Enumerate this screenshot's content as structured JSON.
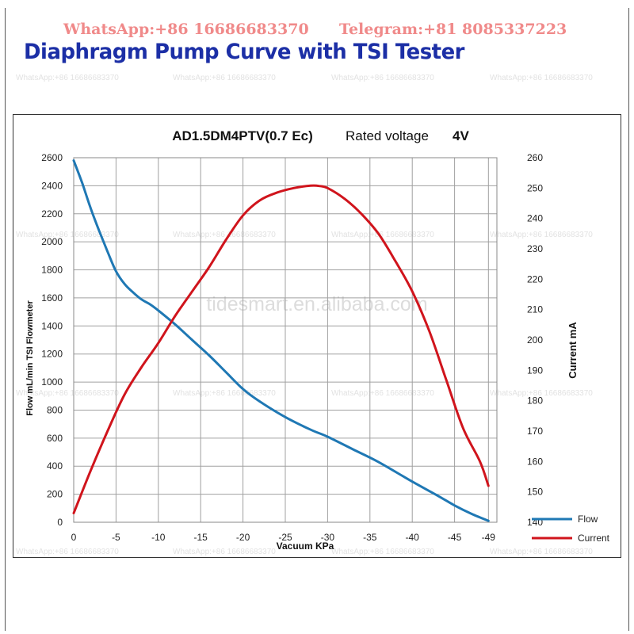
{
  "banner": {
    "whatsapp": "WhatsApp:+86 16686683370",
    "telegram": "Telegram:+81 8085337223"
  },
  "heading": "Diaphragm Pump Curve with TSI Tester",
  "watermarks": {
    "contact": "WhatsApp:+86 16686683370",
    "site": "tidesmart.en.alibaba.com"
  },
  "colors": {
    "heading": "#1c2fa6",
    "banner": "#f08a8a",
    "flow": "#1f78b4",
    "current": "#d0141c",
    "grid": "#a0a0a0"
  },
  "chart_data": {
    "type": "line",
    "title": "AD1.5DM4PTV(0.7 Ec)",
    "subtitle_label": "Rated voltage",
    "subtitle_value": "4V",
    "xlabel": "Vacuum KPa",
    "ylabel_left": "Flow mL/min TSI Flowmeter",
    "ylabel_right": "Current mA",
    "xlim": [
      0,
      -50
    ],
    "x_ticks": [
      0,
      -5,
      -10,
      -15,
      -20,
      -25,
      -30,
      -35,
      -40,
      -45,
      -49
    ],
    "x_tick_labels": [
      "0",
      "-5",
      "-10",
      "-15",
      "-20",
      "-25",
      "-30",
      "-35",
      "-40",
      "-45",
      "-49"
    ],
    "ylim_left": [
      0,
      2600
    ],
    "y_ticks_left": [
      0,
      200,
      400,
      600,
      800,
      1000,
      1200,
      1400,
      1600,
      1800,
      2000,
      2200,
      2400,
      2600
    ],
    "ylim_right": [
      140,
      260
    ],
    "y_ticks_right": [
      140,
      150,
      160,
      170,
      180,
      190,
      200,
      210,
      220,
      230,
      240,
      250,
      260
    ],
    "grid": true,
    "legend_position": "bottom-right",
    "series": [
      {
        "name": "Flow",
        "axis": "left",
        "x": [
          0,
          -1,
          -2,
          -3,
          -4,
          -5,
          -6,
          -7,
          -8,
          -9,
          -10,
          -12,
          -14,
          -16,
          -18,
          -20,
          -22,
          -25,
          -28,
          -30,
          -33,
          -36,
          -40,
          -43,
          -45,
          -47,
          -49
        ],
        "values": [
          2580,
          2420,
          2240,
          2080,
          1930,
          1790,
          1700,
          1640,
          1590,
          1555,
          1510,
          1410,
          1300,
          1190,
          1070,
          950,
          860,
          750,
          660,
          610,
          520,
          430,
          290,
          190,
          120,
          60,
          10
        ]
      },
      {
        "name": "Current",
        "axis": "right",
        "x": [
          0,
          -2,
          -4,
          -6,
          -8,
          -10,
          -12,
          -14,
          -16,
          -18,
          -20,
          -22,
          -24,
          -26,
          -28,
          -29,
          -30,
          -32,
          -34,
          -36,
          -38,
          -40,
          -42,
          -44,
          -46,
          -48,
          -49
        ],
        "values": [
          143,
          157,
          170,
          182,
          191,
          199,
          208,
          216,
          224,
          233,
          241,
          246,
          248.5,
          250,
          250.8,
          250.7,
          250,
          246.5,
          241.5,
          235,
          226,
          216,
          203,
          187,
          171,
          160,
          152
        ]
      }
    ]
  }
}
